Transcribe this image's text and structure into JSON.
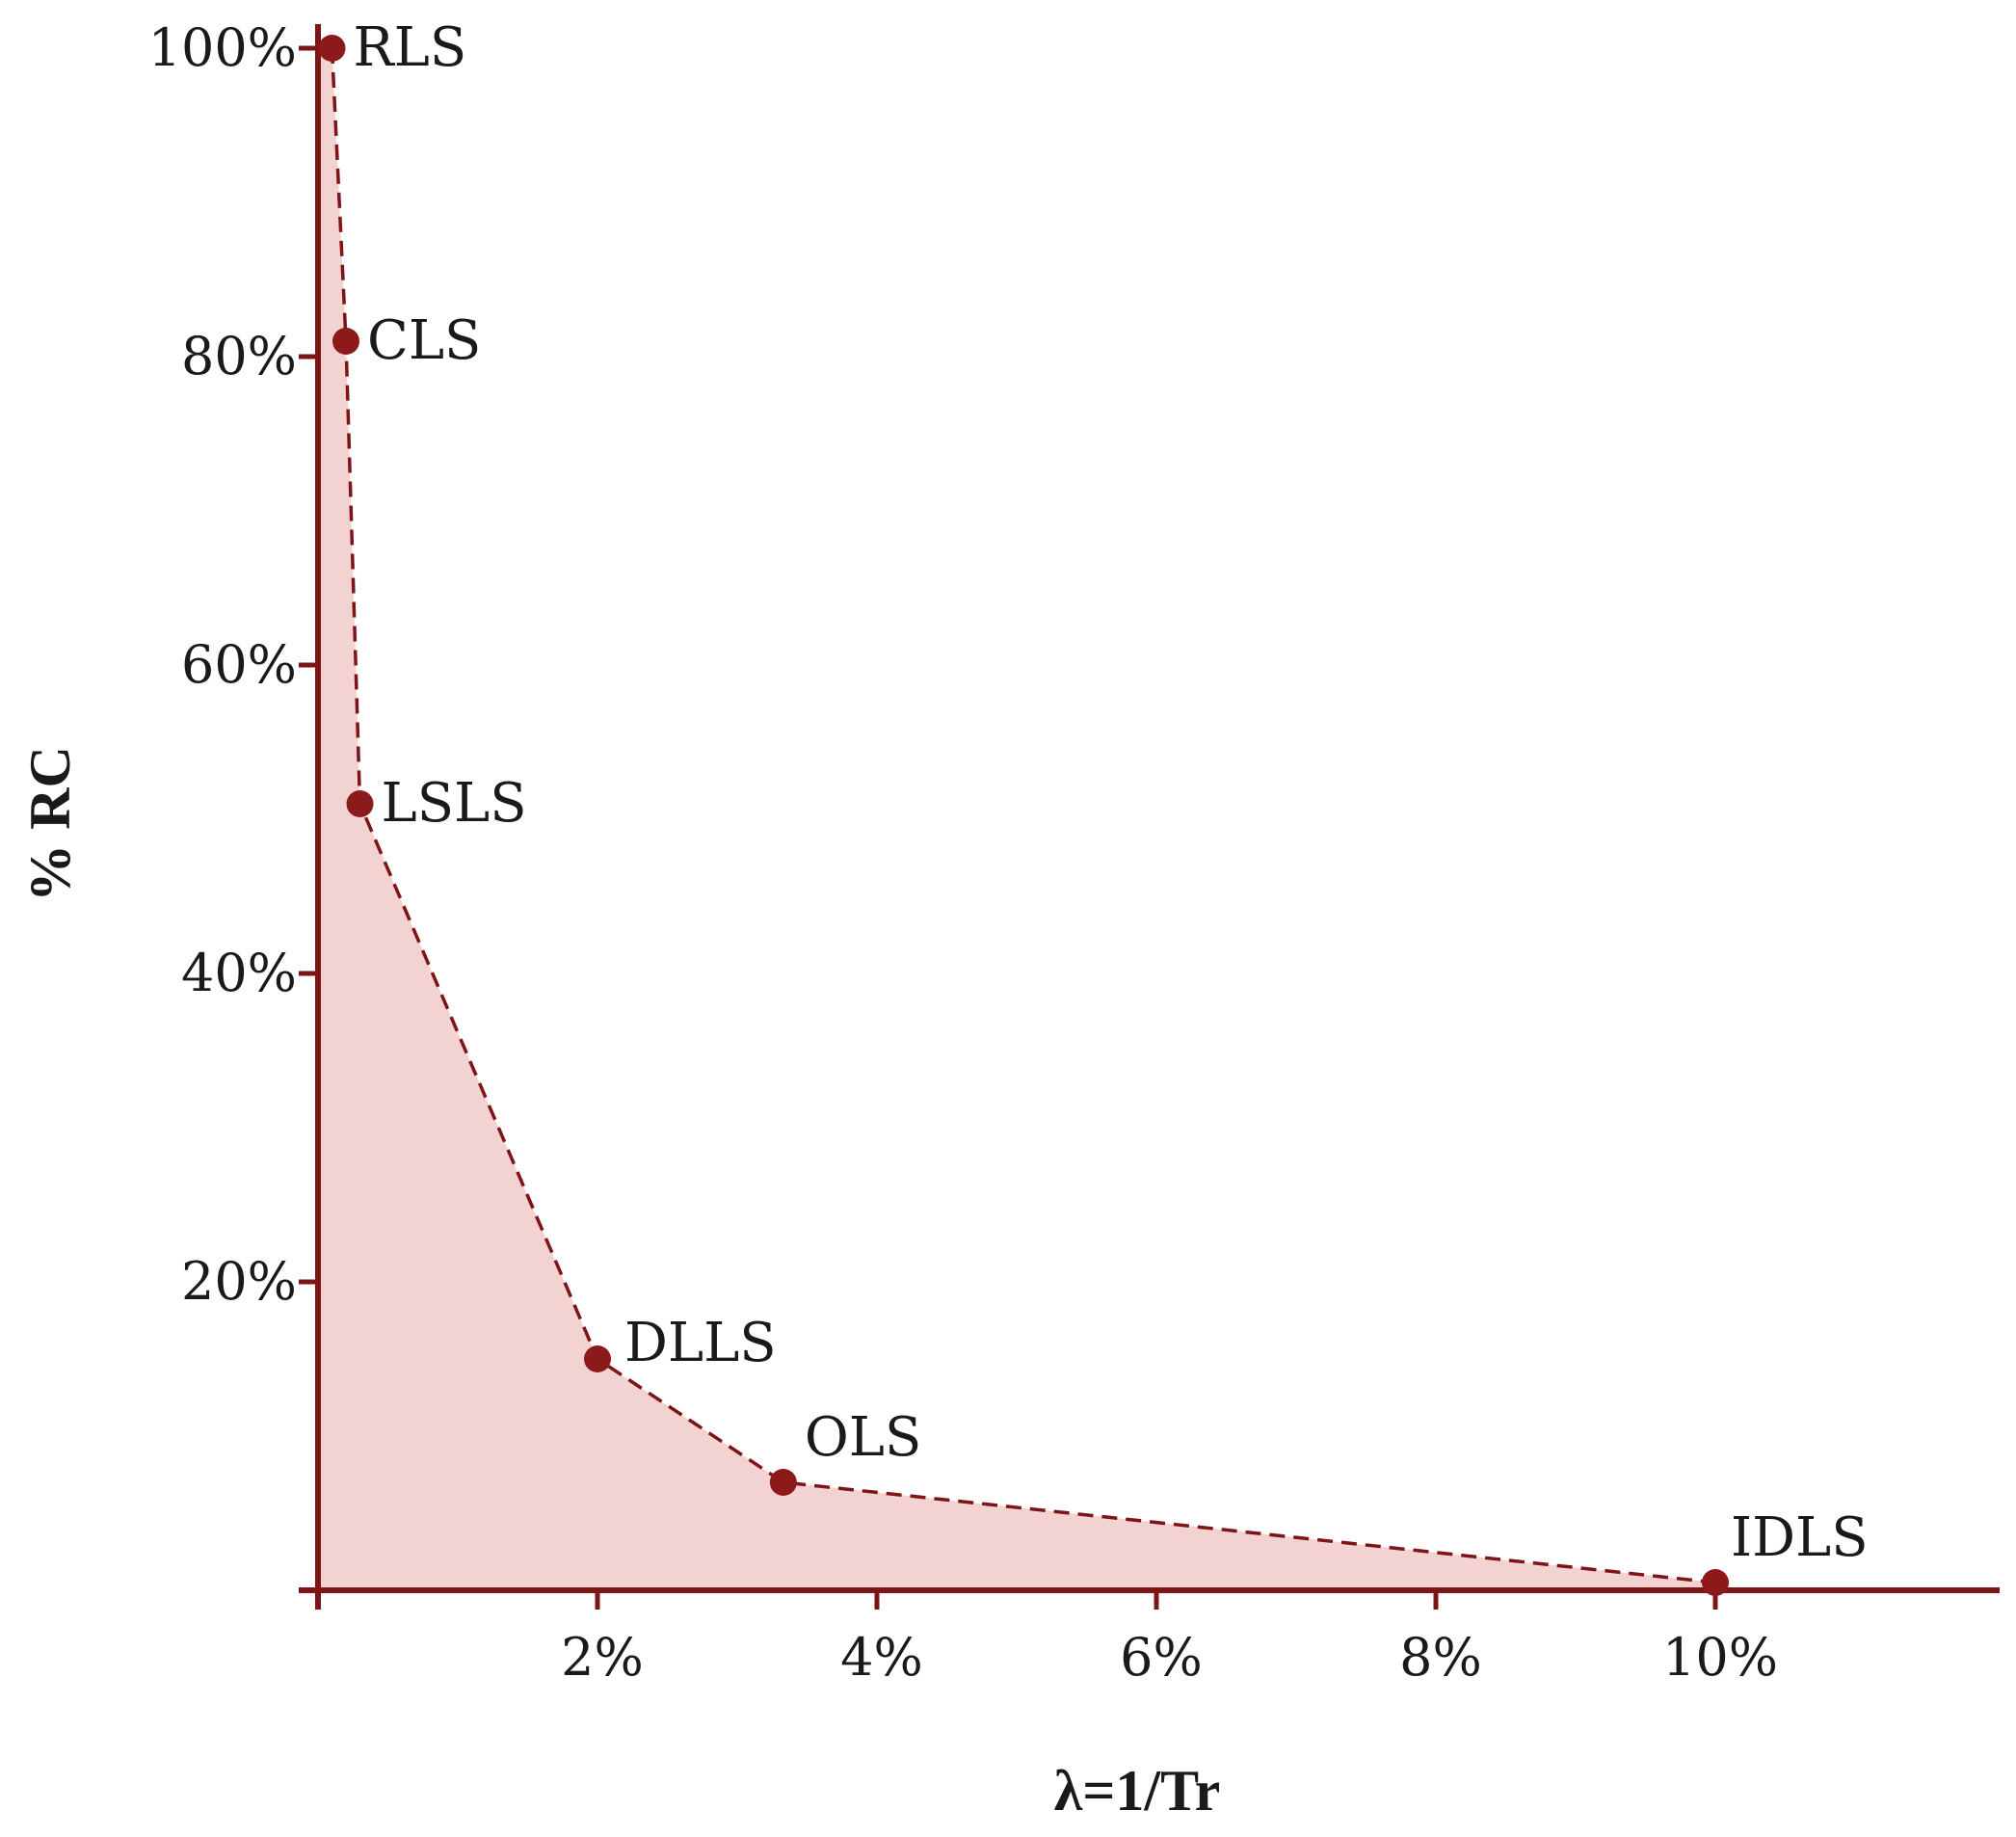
{
  "chart_data": {
    "type": "area",
    "title": "",
    "xlabel": "λ=1/Tr",
    "ylabel": "% RC",
    "xlim": [
      0,
      12
    ],
    "ylim": [
      0,
      100
    ],
    "grid": false,
    "legend": "none",
    "x_ticks": [
      {
        "value": 2,
        "label": "2%"
      },
      {
        "value": 4,
        "label": "4%"
      },
      {
        "value": 6,
        "label": "6%"
      },
      {
        "value": 8,
        "label": "8%"
      },
      {
        "value": 10,
        "label": "10%"
      }
    ],
    "y_ticks": [
      {
        "value": 20,
        "label": "20%"
      },
      {
        "value": 40,
        "label": "40%"
      },
      {
        "value": 60,
        "label": "60%"
      },
      {
        "value": 80,
        "label": "80%"
      },
      {
        "value": 100,
        "label": "100%"
      }
    ],
    "points": [
      {
        "label": "RLS",
        "x": 0.1,
        "y": 100
      },
      {
        "label": "CLS",
        "x": 0.2,
        "y": 81
      },
      {
        "label": "LSLS",
        "x": 0.3,
        "y": 51
      },
      {
        "label": "DLLS",
        "x": 2.0,
        "y": 15
      },
      {
        "label": "OLS",
        "x": 3.33,
        "y": 7
      },
      {
        "label": "IDLS",
        "x": 10.0,
        "y": 0.5
      }
    ],
    "colors": {
      "axis": "#7d1416",
      "line": "#7d1416",
      "marker": "#8c1a1a",
      "fill": "#f3d3d1"
    }
  }
}
